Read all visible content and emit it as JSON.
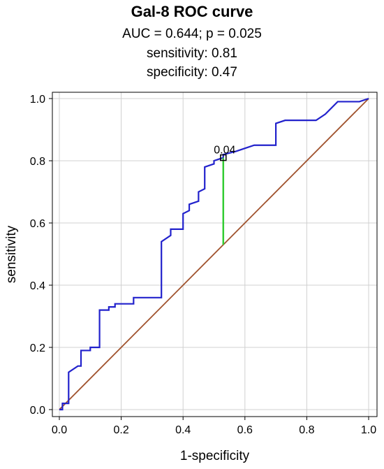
{
  "chart_data": {
    "type": "line",
    "title": "Gal-8 ROC curve",
    "subtitle_lines": [
      "AUC = 0.644; p = 0.025",
      "sensitivity: 0.81",
      "specificity: 0.47"
    ],
    "xlabel": "1-specificity",
    "ylabel": "sensitivity",
    "xlim": [
      0,
      1
    ],
    "ylim": [
      0,
      1
    ],
    "xticks": [
      "0.0",
      "0.2",
      "0.4",
      "0.6",
      "0.8",
      "1.0"
    ],
    "yticks": [
      "0.0",
      "0.2",
      "0.4",
      "0.6",
      "0.8",
      "1.0"
    ],
    "grid": true,
    "series": [
      {
        "color": "#2222cc",
        "x": [
          0,
          0.01,
          0.01,
          0.03,
          0.03,
          0.06,
          0.07,
          0.07,
          0.1,
          0.1,
          0.13,
          0.13,
          0.16,
          0.16,
          0.18,
          0.18,
          0.24,
          0.24,
          0.33,
          0.33,
          0.36,
          0.36,
          0.4,
          0.4,
          0.42,
          0.42,
          0.45,
          0.45,
          0.47,
          0.47,
          0.5,
          0.5,
          0.53,
          0.53,
          0.57,
          0.6,
          0.63,
          0.7,
          0.7,
          0.73,
          0.78,
          0.83,
          0.86,
          0.9,
          0.97,
          1.0
        ],
        "y": [
          0,
          0,
          0.02,
          0.02,
          0.12,
          0.14,
          0.14,
          0.19,
          0.19,
          0.2,
          0.2,
          0.32,
          0.32,
          0.33,
          0.33,
          0.34,
          0.34,
          0.36,
          0.36,
          0.54,
          0.56,
          0.58,
          0.58,
          0.63,
          0.64,
          0.66,
          0.67,
          0.7,
          0.71,
          0.78,
          0.79,
          0.8,
          0.81,
          0.82,
          0.83,
          0.84,
          0.85,
          0.85,
          0.92,
          0.93,
          0.93,
          0.93,
          0.95,
          0.99,
          0.99,
          1.0
        ]
      },
      {
        "color": "#a0522d",
        "x": [
          0,
          1
        ],
        "y": [
          0,
          1
        ]
      }
    ],
    "annotation": {
      "label": "0.04",
      "x": 0.53,
      "y": 0.81,
      "line_to_y": 0.53,
      "line_color": "#33cc33"
    }
  }
}
